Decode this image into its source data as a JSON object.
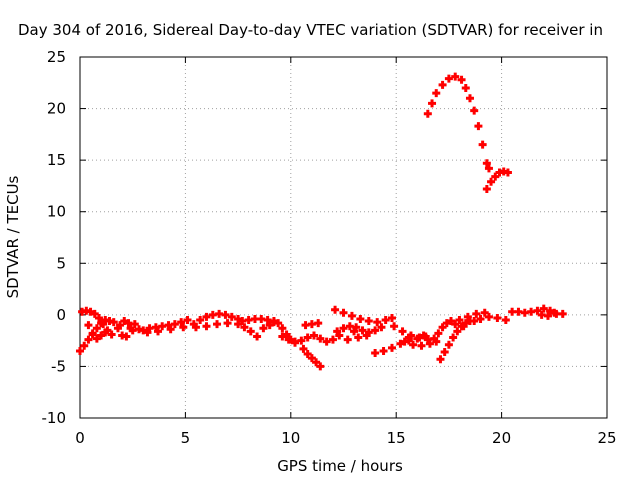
{
  "chart_data": {
    "type": "scatter",
    "title": "Day 304 of 2016, Sidereal Day-to-day VTEC variation (SDTVAR) for receiver in",
    "xlabel": "GPS time / hours",
    "ylabel": "SDTVAR / TECUs",
    "xlim": [
      0,
      25
    ],
    "ylim": [
      -10,
      25
    ],
    "xticks": [
      0,
      5,
      10,
      15,
      20,
      25
    ],
    "yticks": [
      -10,
      -5,
      0,
      5,
      10,
      15,
      20,
      25
    ],
    "grid": true,
    "marker_color": "#ff0000",
    "series": [
      {
        "values": [
          {
            "x": 16.5,
            "y": 19.5
          },
          {
            "x": 16.7,
            "y": 20.5
          },
          {
            "x": 16.9,
            "y": 21.5
          },
          {
            "x": 17.2,
            "y": 22.3
          },
          {
            "x": 17.5,
            "y": 22.9
          },
          {
            "x": 17.8,
            "y": 23.1
          },
          {
            "x": 18.1,
            "y": 22.8
          },
          {
            "x": 18.3,
            "y": 22.0
          },
          {
            "x": 18.5,
            "y": 21.0
          },
          {
            "x": 18.7,
            "y": 19.8
          },
          {
            "x": 18.9,
            "y": 18.3
          },
          {
            "x": 19.1,
            "y": 16.5
          },
          {
            "x": 19.3,
            "y": 14.7
          },
          {
            "x": 19.4,
            "y": 14.2
          },
          {
            "x": 19.3,
            "y": 12.2
          },
          {
            "x": 19.5,
            "y": 12.9
          },
          {
            "x": 19.7,
            "y": 13.4
          },
          {
            "x": 19.9,
            "y": 13.8
          },
          {
            "x": 20.1,
            "y": 13.9
          },
          {
            "x": 20.3,
            "y": 13.8
          }
        ]
      },
      {
        "values": [
          {
            "x": 0.0,
            "y": -3.5
          },
          {
            "x": 0.2,
            "y": -3.0
          },
          {
            "x": 0.4,
            "y": -2.4
          },
          {
            "x": 0.6,
            "y": -1.9
          },
          {
            "x": 0.8,
            "y": -1.3
          },
          {
            "x": 1.0,
            "y": -0.8
          },
          {
            "x": 1.2,
            "y": -0.5
          },
          {
            "x": 1.4,
            "y": -0.6
          },
          {
            "x": 0.1,
            "y": 0.3
          },
          {
            "x": 0.3,
            "y": 0.4
          },
          {
            "x": 0.5,
            "y": 0.3
          },
          {
            "x": 0.7,
            "y": 0.1
          },
          {
            "x": 0.9,
            "y": -0.3
          },
          {
            "x": 1.1,
            "y": -0.9
          },
          {
            "x": 1.3,
            "y": -1.5
          },
          {
            "x": 1.5,
            "y": -1.9
          },
          {
            "x": 0.4,
            "y": -1.0
          },
          {
            "x": 0.6,
            "y": -1.8
          },
          {
            "x": 0.8,
            "y": -2.3
          },
          {
            "x": 1.0,
            "y": -2.0
          },
          {
            "x": 1.2,
            "y": -1.7
          },
          {
            "x": 1.6,
            "y": -0.7
          },
          {
            "x": 1.8,
            "y": -1.3
          },
          {
            "x": 2.0,
            "y": -2.0
          },
          {
            "x": 2.2,
            "y": -2.1
          },
          {
            "x": 2.4,
            "y": -1.3
          },
          {
            "x": 2.6,
            "y": -0.9
          },
          {
            "x": 2.8,
            "y": -1.4
          },
          {
            "x": 1.9,
            "y": -1.0
          },
          {
            "x": 2.1,
            "y": -0.6
          },
          {
            "x": 2.3,
            "y": -0.8
          },
          {
            "x": 2.5,
            "y": -1.5
          },
          {
            "x": 3.0,
            "y": -1.5
          },
          {
            "x": 3.3,
            "y": -1.3
          },
          {
            "x": 3.6,
            "y": -1.2
          },
          {
            "x": 3.9,
            "y": -1.1
          },
          {
            "x": 4.2,
            "y": -1.0
          },
          {
            "x": 4.5,
            "y": -0.9
          },
          {
            "x": 4.8,
            "y": -0.7
          },
          {
            "x": 5.1,
            "y": -0.5
          },
          {
            "x": 3.2,
            "y": -1.7
          },
          {
            "x": 3.7,
            "y": -1.6
          },
          {
            "x": 4.3,
            "y": -1.4
          },
          {
            "x": 4.9,
            "y": -1.2
          },
          {
            "x": 5.4,
            "y": -0.9
          },
          {
            "x": 5.7,
            "y": -0.5
          },
          {
            "x": 6.0,
            "y": -0.2
          },
          {
            "x": 6.3,
            "y": 0.0
          },
          {
            "x": 6.6,
            "y": 0.1
          },
          {
            "x": 6.9,
            "y": 0.0
          },
          {
            "x": 7.2,
            "y": -0.2
          },
          {
            "x": 7.5,
            "y": -0.4
          },
          {
            "x": 5.5,
            "y": -1.2
          },
          {
            "x": 6.0,
            "y": -1.1
          },
          {
            "x": 6.5,
            "y": -0.9
          },
          {
            "x": 7.0,
            "y": -0.8
          },
          {
            "x": 7.5,
            "y": -0.9
          },
          {
            "x": 7.8,
            "y": -1.2
          },
          {
            "x": 8.1,
            "y": -1.6
          },
          {
            "x": 8.4,
            "y": -2.1
          },
          {
            "x": 7.7,
            "y": -0.6
          },
          {
            "x": 8.0,
            "y": -0.5
          },
          {
            "x": 8.3,
            "y": -0.4
          },
          {
            "x": 8.6,
            "y": -0.4
          },
          {
            "x": 8.9,
            "y": -0.5
          },
          {
            "x": 9.2,
            "y": -0.7
          },
          {
            "x": 8.7,
            "y": -1.3
          },
          {
            "x": 9.0,
            "y": -1.0
          },
          {
            "x": 9.2,
            "y": -0.6
          },
          {
            "x": 9.4,
            "y": -0.8
          },
          {
            "x": 9.6,
            "y": -1.3
          },
          {
            "x": 9.8,
            "y": -1.9
          },
          {
            "x": 10.0,
            "y": -2.4
          },
          {
            "x": 10.2,
            "y": -2.7
          },
          {
            "x": 9.6,
            "y": -2.1
          },
          {
            "x": 9.9,
            "y": -2.4
          },
          {
            "x": 10.2,
            "y": -2.6
          },
          {
            "x": 10.5,
            "y": -2.5
          },
          {
            "x": 10.8,
            "y": -2.2
          },
          {
            "x": 11.1,
            "y": -2.0
          },
          {
            "x": 11.4,
            "y": -2.3
          },
          {
            "x": 11.7,
            "y": -2.6
          },
          {
            "x": 12.0,
            "y": -2.4
          },
          {
            "x": 12.3,
            "y": -2.0
          },
          {
            "x": 10.6,
            "y": -3.3
          },
          {
            "x": 10.8,
            "y": -3.8
          },
          {
            "x": 11.0,
            "y": -4.2
          },
          {
            "x": 11.2,
            "y": -4.6
          },
          {
            "x": 11.4,
            "y": -5.0
          },
          {
            "x": 10.7,
            "y": -1.0
          },
          {
            "x": 11.0,
            "y": -0.9
          },
          {
            "x": 11.3,
            "y": -0.8
          },
          {
            "x": 12.1,
            "y": 0.5
          },
          {
            "x": 12.5,
            "y": 0.2
          },
          {
            "x": 12.9,
            "y": -0.1
          },
          {
            "x": 13.3,
            "y": -0.4
          },
          {
            "x": 13.7,
            "y": -0.6
          },
          {
            "x": 14.1,
            "y": -0.7
          },
          {
            "x": 14.5,
            "y": -0.5
          },
          {
            "x": 14.8,
            "y": -0.3
          },
          {
            "x": 12.2,
            "y": -1.6
          },
          {
            "x": 12.5,
            "y": -1.3
          },
          {
            "x": 12.8,
            "y": -1.1
          },
          {
            "x": 13.1,
            "y": -1.2
          },
          {
            "x": 13.4,
            "y": -1.5
          },
          {
            "x": 13.7,
            "y": -1.7
          },
          {
            "x": 14.0,
            "y": -1.5
          },
          {
            "x": 14.3,
            "y": -1.2
          },
          {
            "x": 12.7,
            "y": -2.4
          },
          {
            "x": 13.2,
            "y": -2.2
          },
          {
            "x": 13.6,
            "y": -2.0
          },
          {
            "x": 13.0,
            "y": -1.6
          },
          {
            "x": 14.0,
            "y": -3.7
          },
          {
            "x": 14.4,
            "y": -3.5
          },
          {
            "x": 14.8,
            "y": -3.2
          },
          {
            "x": 15.2,
            "y": -2.8
          },
          {
            "x": 15.6,
            "y": -2.5
          },
          {
            "x": 16.0,
            "y": -2.3
          },
          {
            "x": 16.4,
            "y": -2.1
          },
          {
            "x": 16.8,
            "y": -2.3
          },
          {
            "x": 14.9,
            "y": -1.1
          },
          {
            "x": 15.3,
            "y": -1.6
          },
          {
            "x": 15.7,
            "y": -2.0
          },
          {
            "x": 16.1,
            "y": -2.2
          },
          {
            "x": 16.5,
            "y": -2.4
          },
          {
            "x": 16.9,
            "y": -2.6
          },
          {
            "x": 15.4,
            "y": -2.6
          },
          {
            "x": 15.8,
            "y": -2.9
          },
          {
            "x": 16.2,
            "y": -3.0
          },
          {
            "x": 16.6,
            "y": -2.8
          },
          {
            "x": 15.6,
            "y": -2.2
          },
          {
            "x": 16.3,
            "y": -2.0
          },
          {
            "x": 17.1,
            "y": -4.3
          },
          {
            "x": 17.3,
            "y": -3.6
          },
          {
            "x": 17.5,
            "y": -2.9
          },
          {
            "x": 17.7,
            "y": -2.2
          },
          {
            "x": 17.9,
            "y": -1.6
          },
          {
            "x": 18.1,
            "y": -1.1
          },
          {
            "x": 18.3,
            "y": -0.8
          },
          {
            "x": 18.5,
            "y": -0.6
          },
          {
            "x": 17.0,
            "y": -1.8
          },
          {
            "x": 17.2,
            "y": -1.2
          },
          {
            "x": 17.4,
            "y": -0.8
          },
          {
            "x": 17.6,
            "y": -0.6
          },
          {
            "x": 18.0,
            "y": -0.5
          },
          {
            "x": 18.4,
            "y": -0.2
          },
          {
            "x": 18.8,
            "y": 0.1
          },
          {
            "x": 19.2,
            "y": 0.2
          },
          {
            "x": 18.7,
            "y": -0.6
          },
          {
            "x": 19.0,
            "y": -0.4
          },
          {
            "x": 19.4,
            "y": -0.2
          },
          {
            "x": 19.8,
            "y": -0.3
          },
          {
            "x": 20.2,
            "y": -0.5
          },
          {
            "x": 17.8,
            "y": -0.9
          },
          {
            "x": 18.2,
            "y": -1.1
          },
          {
            "x": 20.5,
            "y": 0.3
          },
          {
            "x": 20.8,
            "y": 0.3
          },
          {
            "x": 21.1,
            "y": 0.2
          },
          {
            "x": 21.4,
            "y": 0.3
          },
          {
            "x": 21.7,
            "y": 0.4
          },
          {
            "x": 22.0,
            "y": 0.6
          },
          {
            "x": 22.3,
            "y": 0.4
          },
          {
            "x": 22.6,
            "y": 0.1
          },
          {
            "x": 22.9,
            "y": 0.1
          },
          {
            "x": 21.9,
            "y": 0.0
          },
          {
            "x": 22.2,
            "y": -0.1
          },
          {
            "x": 22.5,
            "y": 0.2
          }
        ]
      }
    ]
  }
}
